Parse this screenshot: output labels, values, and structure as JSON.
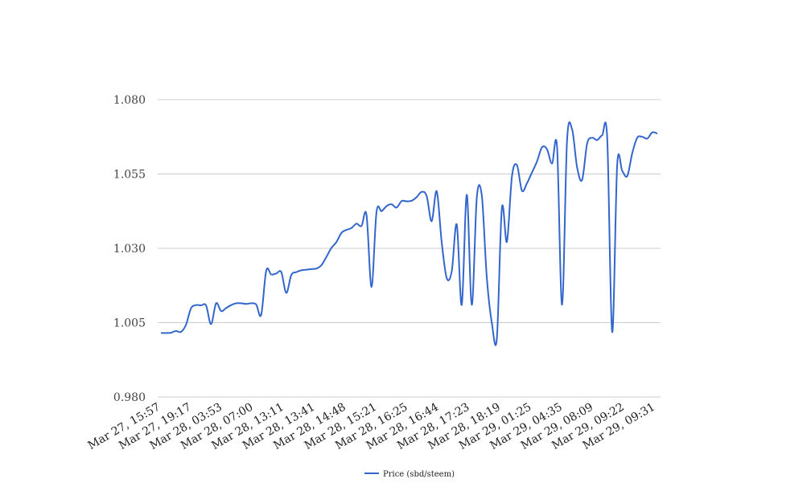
{
  "chart_data": {
    "type": "line",
    "title": "",
    "xlabel": "",
    "ylabel": "",
    "ylim": [
      0.98,
      1.08
    ],
    "yticks": [
      "0.980",
      "1.005",
      "1.030",
      "1.055",
      "1.080"
    ],
    "xticks": [
      "Mar 27, 15:57",
      "Mar 27, 19:17",
      "Mar 28, 03:53",
      "Mar 28, 07:00",
      "Mar 28, 13:11",
      "Mar 28, 13:41",
      "Mar 28, 14:48",
      "Mar 28, 15:21",
      "Mar 28, 16:25",
      "Mar 28, 16:44",
      "Mar 28, 17:23",
      "Mar 28, 18:19",
      "Mar 29, 01:25",
      "Mar 29, 04:35",
      "Mar 29, 08:09",
      "Mar 29, 09:22",
      "Mar 29, 09:31"
    ],
    "grid": true,
    "legend": "bottom",
    "line_color": "#3366cc",
    "series": [
      {
        "name": "Price (sbd/steem)",
        "values": [
          1.0015,
          1.0015,
          1.0016,
          1.0022,
          1.0019,
          1.0043,
          1.0098,
          1.0109,
          1.0108,
          1.0108,
          1.0045,
          1.0115,
          1.0089,
          1.0099,
          1.0109,
          1.0115,
          1.0115,
          1.0113,
          1.0115,
          1.0111,
          1.0076,
          1.0225,
          1.0212,
          1.0215,
          1.022,
          1.015,
          1.021,
          1.022,
          1.0226,
          1.0228,
          1.023,
          1.0232,
          1.0243,
          1.0271,
          1.0301,
          1.0321,
          1.0352,
          1.0362,
          1.0368,
          1.0383,
          1.0375,
          1.0413,
          1.017,
          1.0423,
          1.0425,
          1.0442,
          1.0448,
          1.0437,
          1.0459,
          1.0458,
          1.046,
          1.0472,
          1.049,
          1.0476,
          1.0391,
          1.0492,
          1.032,
          1.02,
          1.0223,
          1.038,
          1.011,
          1.048,
          1.011,
          1.047,
          1.0477,
          1.02,
          1.0049,
          0.9998,
          1.0435,
          1.0322,
          1.0542,
          1.058,
          1.0494,
          1.0519,
          1.0555,
          1.0592,
          1.064,
          1.0633,
          1.0585,
          1.064,
          1.011,
          1.0663,
          1.07,
          1.0572,
          1.053,
          1.0652,
          1.0672,
          1.0664,
          1.068,
          1.0672,
          1.0018,
          1.058,
          1.056,
          1.0543,
          1.062,
          1.0672,
          1.0675,
          1.0669,
          1.069,
          1.0686
        ]
      }
    ]
  }
}
